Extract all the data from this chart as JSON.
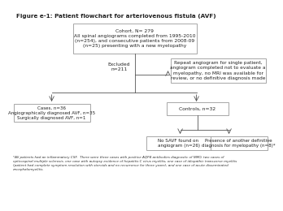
{
  "title": "Figure e-1: Patient flowchart for arteriovenous fistula (AVF)",
  "cohort_box": "Cohort, N= 279\nAll spinal angiograms completed from 1995-2010\n(n=254), and consecutive patients from 2008-09\n(n=25) presenting with a new myelopathy",
  "excluded_label": "Excluded\nn=211",
  "excluded_box": "Repeat angiogram for single patient,\nangiogram completed not to evaluate a\nmyelopathy, no MRI was available for\nreview, or no definitive diagnosis made",
  "cases_box": "Cases, n=36\nAngiographically diagnosed AVF, n=35\nSurgically diagnosed AVF, n=1",
  "controls_box": "Controls, n=32",
  "no_savf_box": "No SAVF found on\nangiogram (n=26)",
  "presence_box": "Presence of another definitive\ndiagnosis for myelopathy (n=8)*",
  "footnote": "*All patients had an inflammatory CSF.  There were three cases with positive AQP4 antibodies diagnostic of NMO, two cases of\nopticospinal multiple sclerosis, one case with autopsy evidence of hepatitis C virus myelitis, one case of idiopathic transverse myelitis\n(patient had complete symptom resolution with steroids and no recurrence for three years), and one case of acute disseminated\nencephalomyelitis.",
  "bg_color": "#ffffff",
  "text_color": "#222222",
  "box_edge": "#999999"
}
